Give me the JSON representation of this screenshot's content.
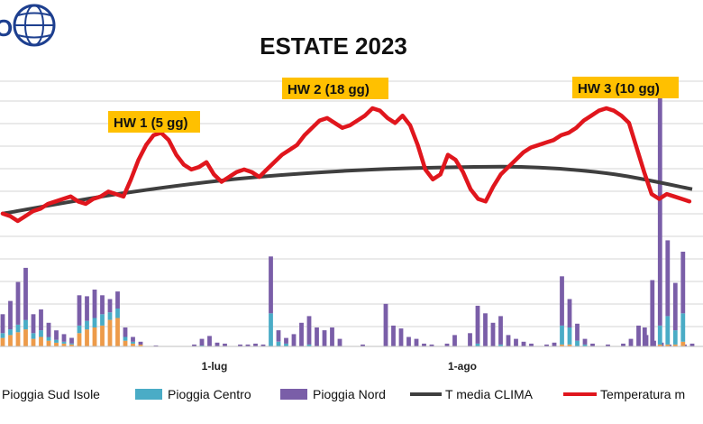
{
  "chart_data": {
    "type": "bar+line",
    "title": "ESTATE 2023",
    "x": {
      "start": "2023-06-01",
      "end": "2023-08-31",
      "tick_labels": [
        "1-lug",
        "1-ago"
      ]
    },
    "grid": true,
    "annotations": [
      "HW 1 (5 gg)",
      "HW 2 (18 gg)",
      "HW 3 (10 gg)"
    ],
    "legend": {
      "placement": "bottom",
      "entries": [
        "Pioggia Sud Isole",
        "Pioggia Centro",
        "Pioggia Nord",
        "T media CLIMA",
        "Temperatura m"
      ]
    },
    "colors": {
      "sud": "#ed9b4a",
      "centro": "#4aacc6",
      "nord": "#7a5ea8",
      "clima": "#3f3f3f",
      "temp": "#e0161d",
      "hw": "#ffc000"
    },
    "rain_bars": [
      [
        0,
        9,
        5,
        20
      ],
      [
        1,
        12,
        6,
        30
      ],
      [
        2,
        15,
        8,
        45
      ],
      [
        3,
        18,
        10,
        55
      ],
      [
        4,
        8,
        6,
        20
      ],
      [
        5,
        10,
        7,
        22
      ],
      [
        6,
        6,
        4,
        15
      ],
      [
        7,
        4,
        3,
        10
      ],
      [
        8,
        3,
        2,
        8
      ],
      [
        9,
        2,
        1,
        6
      ],
      [
        10,
        14,
        8,
        32
      ],
      [
        11,
        18,
        9,
        26
      ],
      [
        12,
        20,
        10,
        30
      ],
      [
        13,
        22,
        12,
        20
      ],
      [
        14,
        28,
        8,
        14
      ],
      [
        15,
        30,
        10,
        18
      ],
      [
        16,
        6,
        4,
        10
      ],
      [
        17,
        3,
        2,
        5
      ],
      [
        18,
        2,
        0,
        3
      ],
      [
        20,
        0,
        0,
        1
      ],
      [
        25,
        0,
        0,
        2
      ],
      [
        26,
        0,
        1,
        7
      ],
      [
        27,
        0,
        0,
        11
      ],
      [
        28,
        0,
        0,
        4
      ],
      [
        29,
        0,
        0,
        3
      ],
      [
        31,
        0,
        0,
        2
      ],
      [
        32,
        0,
        0,
        2
      ],
      [
        33,
        0,
        0,
        3
      ],
      [
        34,
        0,
        0,
        2
      ],
      [
        35,
        0,
        35,
        60
      ],
      [
        36,
        0,
        5,
        12
      ],
      [
        37,
        0,
        3,
        6
      ],
      [
        38,
        0,
        0,
        13
      ],
      [
        39,
        0,
        0,
        25
      ],
      [
        40,
        0,
        2,
        30
      ],
      [
        41,
        0,
        0,
        20
      ],
      [
        42,
        0,
        0,
        17
      ],
      [
        43,
        0,
        0,
        20
      ],
      [
        44,
        0,
        0,
        8
      ],
      [
        47,
        0,
        0,
        2
      ],
      [
        50,
        0,
        0,
        45
      ],
      [
        51,
        0,
        0,
        22
      ],
      [
        52,
        0,
        0,
        19
      ],
      [
        53,
        0,
        0,
        10
      ],
      [
        54,
        0,
        0,
        8
      ],
      [
        55,
        0,
        0,
        3
      ],
      [
        56,
        0,
        0,
        2
      ],
      [
        58,
        0,
        0,
        3
      ],
      [
        59,
        0,
        0,
        12
      ],
      [
        61,
        0,
        0,
        14
      ],
      [
        62,
        0,
        3,
        40
      ],
      [
        63,
        0,
        0,
        35
      ],
      [
        64,
        0,
        0,
        25
      ],
      [
        65,
        0,
        2,
        30
      ],
      [
        66,
        0,
        0,
        12
      ],
      [
        67,
        0,
        0,
        8
      ],
      [
        68,
        0,
        0,
        5
      ],
      [
        69,
        0,
        0,
        3
      ],
      [
        71,
        0,
        0,
        2
      ],
      [
        72,
        0,
        0,
        4
      ],
      [
        73,
        2,
        20,
        52
      ],
      [
        74,
        2,
        18,
        30
      ],
      [
        75,
        0,
        6,
        18
      ],
      [
        76,
        0,
        2,
        6
      ],
      [
        77,
        0,
        0,
        3
      ],
      [
        79,
        0,
        0,
        2
      ],
      [
        81,
        0,
        0,
        3
      ],
      [
        82,
        0,
        0,
        8
      ],
      [
        83,
        0,
        0,
        22
      ],
      [
        84,
        0,
        0,
        12
      ],
      [
        85,
        0,
        0,
        6
      ],
      [
        86,
        0,
        0,
        4
      ],
      [
        87,
        0,
        0,
        2
      ],
      [
        89,
        0,
        0,
        2
      ],
      [
        90,
        0,
        0,
        3
      ]
    ],
    "rain_bars_late": [
      [
        85,
        0,
        0,
        20
      ],
      [
        86,
        0,
        0,
        70
      ],
      [
        87,
        2,
        20,
        240
      ],
      [
        88,
        2,
        30,
        80
      ],
      [
        89,
        2,
        15,
        50
      ],
      [
        90,
        5,
        30,
        65
      ]
    ],
    "clima_curve": [
      [
        0,
        58
      ],
      [
        15,
        66
      ],
      [
        30,
        72
      ],
      [
        45,
        75.5
      ],
      [
        60,
        77
      ],
      [
        70,
        76.8
      ],
      [
        80,
        74
      ],
      [
        90,
        68
      ]
    ],
    "temp_series": [
      [
        0,
        58
      ],
      [
        1,
        57
      ],
      [
        2,
        55
      ],
      [
        3,
        57
      ],
      [
        4,
        59
      ],
      [
        5,
        60
      ],
      [
        6,
        62
      ],
      [
        7,
        63
      ],
      [
        8,
        64
      ],
      [
        9,
        65
      ],
      [
        10,
        63
      ],
      [
        11,
        62
      ],
      [
        12,
        64
      ],
      [
        13,
        65
      ],
      [
        14,
        67
      ],
      [
        15,
        66
      ],
      [
        16,
        65
      ],
      [
        17,
        72
      ],
      [
        18,
        80
      ],
      [
        19,
        86
      ],
      [
        20,
        90
      ],
      [
        21,
        91
      ],
      [
        22,
        88
      ],
      [
        23,
        82
      ],
      [
        24,
        78
      ],
      [
        25,
        76
      ],
      [
        26,
        77
      ],
      [
        27,
        79
      ],
      [
        28,
        74
      ],
      [
        29,
        71
      ],
      [
        30,
        73
      ],
      [
        31,
        75
      ],
      [
        32,
        76
      ],
      [
        33,
        75
      ],
      [
        34,
        73
      ],
      [
        35,
        76
      ],
      [
        36,
        79
      ],
      [
        37,
        82
      ],
      [
        38,
        84
      ],
      [
        39,
        86
      ],
      [
        40,
        90
      ],
      [
        41,
        93
      ],
      [
        42,
        96
      ],
      [
        43,
        97
      ],
      [
        44,
        95
      ],
      [
        45,
        93
      ],
      [
        46,
        94
      ],
      [
        47,
        96
      ],
      [
        48,
        98
      ],
      [
        49,
        101
      ],
      [
        50,
        100
      ],
      [
        51,
        97
      ],
      [
        52,
        95
      ],
      [
        53,
        98
      ],
      [
        54,
        94
      ],
      [
        55,
        86
      ],
      [
        56,
        76
      ],
      [
        57,
        72
      ],
      [
        58,
        74
      ],
      [
        59,
        82
      ],
      [
        60,
        80
      ],
      [
        61,
        75
      ],
      [
        62,
        68
      ],
      [
        63,
        64
      ],
      [
        64,
        63
      ],
      [
        65,
        69
      ],
      [
        66,
        74
      ],
      [
        67,
        77
      ],
      [
        68,
        80
      ],
      [
        69,
        83
      ],
      [
        70,
        85
      ],
      [
        71,
        86
      ],
      [
        72,
        87
      ],
      [
        73,
        88
      ],
      [
        74,
        90
      ],
      [
        75,
        91
      ],
      [
        76,
        93
      ],
      [
        77,
        96
      ],
      [
        78,
        98
      ],
      [
        79,
        100
      ],
      [
        80,
        101
      ],
      [
        81,
        100
      ],
      [
        82,
        98
      ],
      [
        83,
        95
      ],
      [
        84,
        85
      ],
      [
        85,
        75
      ],
      [
        86,
        66
      ],
      [
        87,
        64
      ],
      [
        88,
        66
      ],
      [
        89,
        65
      ],
      [
        90,
        64
      ],
      [
        91,
        63
      ]
    ]
  }
}
